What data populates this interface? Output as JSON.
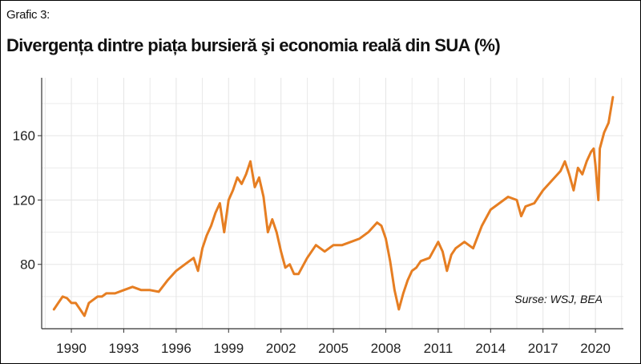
{
  "figure": {
    "label": "Grafic 3:",
    "title": "Divergența dintre piața bursieră şi economia reală din SUA (%)",
    "source": "Surse: WSJ, BEA"
  },
  "colors": {
    "line": "#E67E22",
    "grid": "#E5E5E5",
    "axis": "#333333"
  },
  "chart_data": {
    "type": "line",
    "title": "Divergența dintre piața bursieră şi economia reală din SUA (%)",
    "xlabel": "",
    "ylabel": "",
    "xlim": [
      1988.3,
      2021.6
    ],
    "ylim": [
      40,
      196
    ],
    "x_ticks": [
      1990,
      1993,
      1996,
      1999,
      2002,
      2005,
      2008,
      2011,
      2014,
      2017,
      2020
    ],
    "y_ticks": [
      80,
      120,
      160
    ],
    "grid": true,
    "legend": "none",
    "series": [
      {
        "x": [
          1989.0,
          1989.25,
          1989.5,
          1989.75,
          1990.0,
          1990.25,
          1990.5,
          1990.75,
          1991.0,
          1991.25,
          1991.5,
          1991.75,
          1992.0,
          1992.5,
          1993.0,
          1993.5,
          1994.0,
          1994.5,
          1995.0,
          1995.5,
          1996.0,
          1996.5,
          1997.0,
          1997.25,
          1997.5,
          1997.75,
          1998.0,
          1998.25,
          1998.5,
          1998.75,
          1999.0,
          1999.25,
          1999.5,
          1999.75,
          2000.0,
          2000.25,
          2000.5,
          2000.75,
          2001.0,
          2001.25,
          2001.5,
          2001.75,
          2002.0,
          2002.25,
          2002.5,
          2002.75,
          2003.0,
          2003.5,
          2004.0,
          2004.5,
          2005.0,
          2005.5,
          2006.0,
          2006.5,
          2007.0,
          2007.5,
          2007.75,
          2008.0,
          2008.25,
          2008.5,
          2008.75,
          2009.0,
          2009.25,
          2009.5,
          2009.75,
          2010.0,
          2010.5,
          2011.0,
          2011.25,
          2011.5,
          2011.75,
          2012.0,
          2012.5,
          2013.0,
          2013.5,
          2014.0,
          2014.5,
          2015.0,
          2015.5,
          2015.75,
          2016.0,
          2016.5,
          2017.0,
          2017.5,
          2018.0,
          2018.25,
          2018.5,
          2018.75,
          2019.0,
          2019.25,
          2019.5,
          2019.75,
          2019.9,
          2020.0,
          2020.17,
          2020.25,
          2020.5,
          2020.75,
          2021.0
        ],
        "values": [
          52,
          56,
          60,
          59,
          56,
          56,
          52,
          48,
          56,
          58,
          60,
          60,
          62,
          62,
          64,
          66,
          64,
          64,
          63,
          70,
          76,
          80,
          84,
          76,
          90,
          98,
          104,
          112,
          118,
          100,
          120,
          126,
          134,
          130,
          136,
          144,
          128,
          134,
          122,
          100,
          108,
          100,
          88,
          78,
          80,
          74,
          74,
          84,
          92,
          88,
          92,
          92,
          94,
          96,
          100,
          106,
          104,
          96,
          82,
          64,
          52,
          62,
          70,
          76,
          78,
          82,
          84,
          94,
          88,
          76,
          86,
          90,
          94,
          90,
          104,
          114,
          118,
          122,
          120,
          110,
          116,
          118,
          126,
          132,
          138,
          144,
          136,
          126,
          140,
          136,
          144,
          150,
          152,
          142,
          120,
          152,
          162,
          168,
          184
        ]
      }
    ]
  }
}
